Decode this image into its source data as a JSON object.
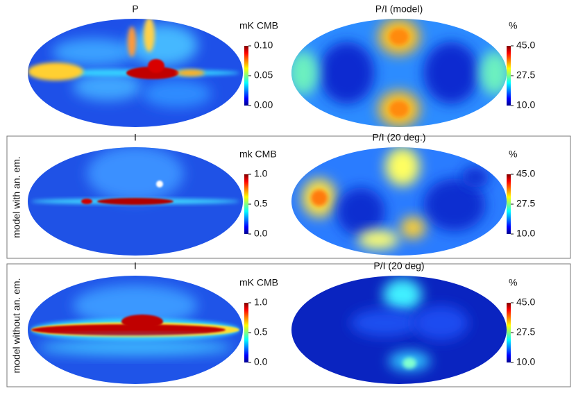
{
  "rows": [
    {
      "panels": [
        {
          "title": "P",
          "unit": "mK CMB",
          "ticks": [
            "0.10",
            "0.05",
            "0.00"
          ]
        },
        {
          "title": "P/I (model)",
          "unit": "%",
          "ticks": [
            "45.0",
            "27.5",
            "10.0"
          ]
        }
      ]
    },
    {
      "label": "model with an. em.",
      "panels": [
        {
          "title": "I",
          "unit": "mk CMB",
          "ticks": [
            "1.0",
            "0.5",
            "0.0"
          ]
        },
        {
          "title": "P/I (20 deg.)",
          "unit": "%",
          "ticks": [
            "45.0",
            "27.5",
            "10.0"
          ]
        }
      ]
    },
    {
      "label": "model without an. em.",
      "panels": [
        {
          "title": "I",
          "unit": "mK CMB",
          "ticks": [
            "1.0",
            "0.5",
            "0.0"
          ]
        },
        {
          "title": "P/I (20 deg)",
          "unit": "%",
          "ticks": [
            "45.0",
            "27.5",
            "10.0"
          ]
        }
      ]
    }
  ]
}
